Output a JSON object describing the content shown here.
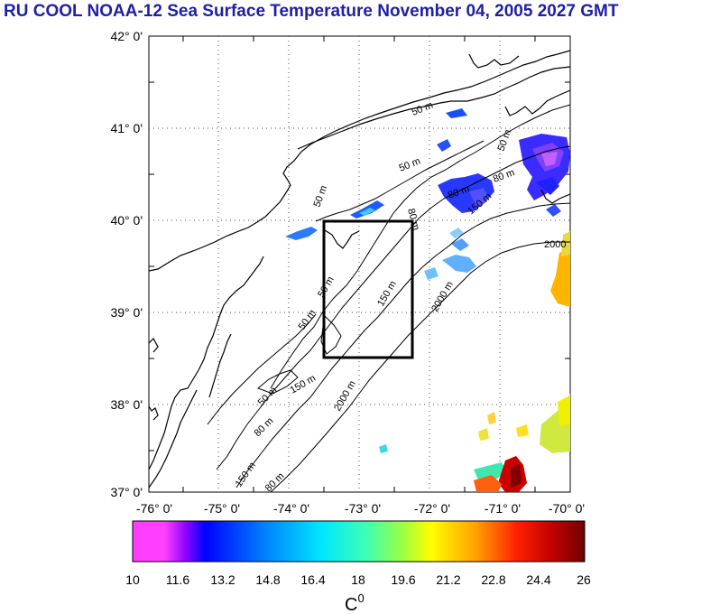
{
  "title": "RU COOL  NOAA-12 Sea Surface Temperature November 04, 2005 2027 GMT",
  "latitude_labels": [
    "42° 0'",
    "41° 0'",
    "40° 0'",
    "39° 0'",
    "38° 0'",
    "37° 0'"
  ],
  "longitude_labels": [
    "-76° 0'",
    "-75° 0'",
    "-74° 0'",
    "-73° 0'",
    "-72° 0'",
    "-71° 0'",
    "-70° 0'"
  ],
  "contour_labels": {
    "c50_a": "50 m",
    "c50_b": "50 m",
    "c50_c": "50 m",
    "c50_d": "50 m",
    "c50_e": "50 m",
    "c50_f": "50 m",
    "c50_g": "50 m",
    "c80_a": "80 m",
    "c80_b": "80 m",
    "c80_c": "80 m",
    "c80_d": "80 m",
    "c80_e": "80 m",
    "c150_a": "150 m",
    "c150_b": "150 m",
    "c150_c": "150 m",
    "c150_d": "150 m",
    "c2000_a": "2000",
    "c2000_b": "2000 m",
    "c2000_c": "2000 m"
  },
  "colorbar": {
    "ticks": [
      "10",
      "11.6",
      "13.2",
      "14.8",
      "16.4",
      "18",
      "19.6",
      "21.2",
      "22.8",
      "24.4",
      "26"
    ],
    "unit": "C",
    "unit_sup": "0",
    "colors": [
      "#ff3cff",
      "#0000ff",
      "#0080ff",
      "#00e0ff",
      "#40ffb0",
      "#a0ff40",
      "#ffff00",
      "#ff9900",
      "#ff2000",
      "#c00000",
      "#800000"
    ]
  }
}
